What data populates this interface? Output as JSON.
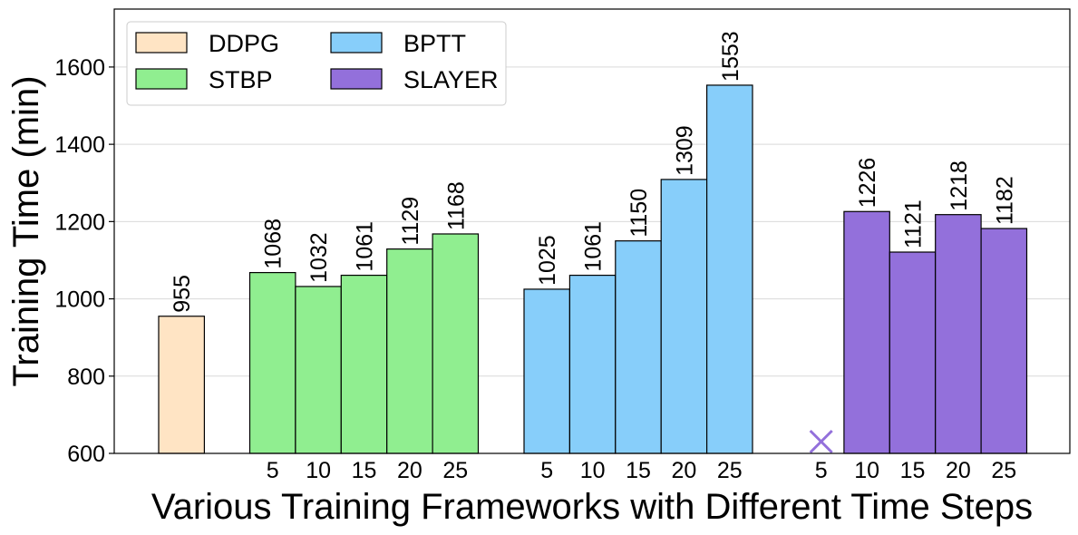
{
  "chart_data": {
    "type": "bar",
    "xlabel": "Various Training Frameworks with Different Time Steps",
    "ylabel": "Training Time (min)",
    "ylim": [
      600,
      1750
    ],
    "yticks": [
      600,
      800,
      1000,
      1200,
      1400,
      1600
    ],
    "grid": "horizontal",
    "legend_position": "top-left",
    "legend_columns": 2,
    "groups": [
      {
        "name": "DDPG",
        "color": "#FFE4C4",
        "categories": [
          ""
        ],
        "values": [
          955
        ]
      },
      {
        "name": "STBP",
        "color": "#90EE90",
        "categories": [
          "5",
          "10",
          "15",
          "20",
          "25"
        ],
        "values": [
          1068,
          1032,
          1061,
          1129,
          1168
        ]
      },
      {
        "name": "BPTT",
        "color": "#87CEFA",
        "categories": [
          "5",
          "10",
          "15",
          "20",
          "25"
        ],
        "values": [
          1025,
          1061,
          1150,
          1309,
          1553
        ]
      },
      {
        "name": "SLAYER",
        "color": "#9370DB",
        "categories": [
          "5",
          "10",
          "15",
          "20",
          "25"
        ],
        "values": [
          null,
          1226,
          1121,
          1218,
          1182
        ],
        "missing_marker": "×"
      }
    ]
  }
}
